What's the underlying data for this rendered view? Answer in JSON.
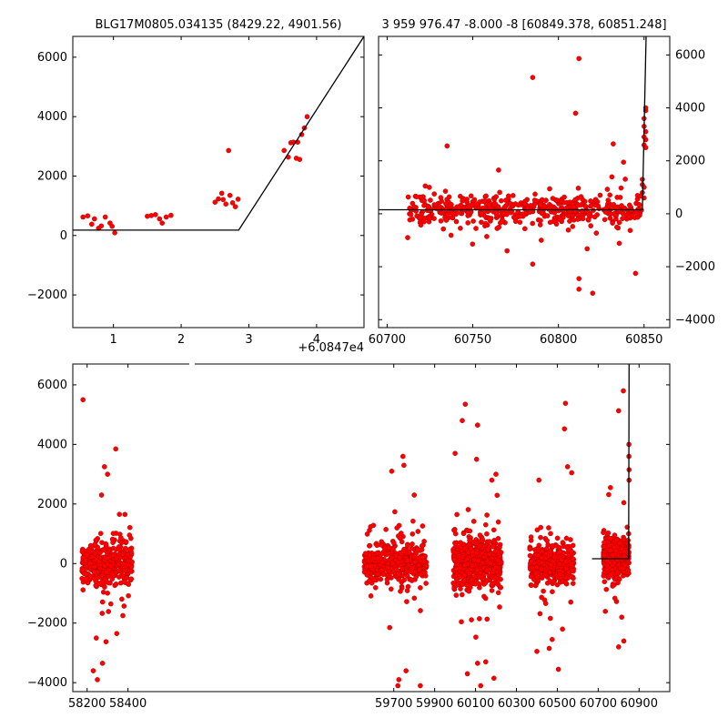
{
  "chart_data": [
    {
      "id": "panel-1",
      "type": "scatter",
      "title": "BLG17M0805.034135 (8429.22, 4901.56)",
      "xlim": [
        0.4,
        4.7
      ],
      "ylim": [
        -3100,
        6700
      ],
      "x_offset_label": "+6.0847e4",
      "xticks": [
        {
          "value": 1,
          "label": "1"
        },
        {
          "value": 2,
          "label": "2"
        },
        {
          "value": 3,
          "label": "3"
        },
        {
          "value": 4,
          "label": "4"
        }
      ],
      "yticks": [
        {
          "value": -2000,
          "label": "−2000"
        },
        {
          "value": 0,
          "label": "0"
        },
        {
          "value": 2000,
          "label": "2000"
        },
        {
          "value": 4000,
          "label": "4000"
        },
        {
          "value": 6000,
          "label": "6000"
        }
      ],
      "y_axis_side": "left",
      "points": [
        [
          0.55,
          620
        ],
        [
          0.62,
          660
        ],
        [
          0.68,
          380
        ],
        [
          0.72,
          560
        ],
        [
          0.78,
          240
        ],
        [
          0.82,
          320
        ],
        [
          0.88,
          620
        ],
        [
          0.95,
          420
        ],
        [
          0.98,
          310
        ],
        [
          1.02,
          90
        ],
        [
          1.5,
          650
        ],
        [
          1.56,
          670
        ],
        [
          1.62,
          700
        ],
        [
          1.68,
          560
        ],
        [
          1.72,
          420
        ],
        [
          1.78,
          620
        ],
        [
          1.85,
          680
        ],
        [
          2.5,
          1120
        ],
        [
          2.55,
          1230
        ],
        [
          2.6,
          1420
        ],
        [
          2.62,
          1210
        ],
        [
          2.66,
          1060
        ],
        [
          2.7,
          2860
        ],
        [
          2.72,
          1350
        ],
        [
          2.76,
          1100
        ],
        [
          2.8,
          970
        ],
        [
          2.84,
          1220
        ],
        [
          3.52,
          2860
        ],
        [
          3.58,
          2640
        ],
        [
          3.62,
          3120
        ],
        [
          3.66,
          3140
        ],
        [
          3.7,
          2600
        ],
        [
          3.72,
          3140
        ],
        [
          3.75,
          2560
        ],
        [
          3.78,
          3400
        ],
        [
          3.82,
          3620
        ],
        [
          3.86,
          4000
        ]
      ],
      "model": [
        [
          0.4,
          180
        ],
        [
          2.85,
          180
        ],
        [
          4.7,
          6700
        ]
      ]
    },
    {
      "id": "panel-2",
      "type": "scatter",
      "title": "3 959 976.47 -8.000 -8 [60849.378, 60851.248]",
      "xlim": [
        60695,
        60865
      ],
      "ylim": [
        -4300,
        6700
      ],
      "xticks": [
        {
          "value": 60700,
          "label": "60700"
        },
        {
          "value": 60750,
          "label": "60750"
        },
        {
          "value": 60800,
          "label": "60800"
        },
        {
          "value": 60850,
          "label": "60850"
        }
      ],
      "yticks": [
        {
          "value": -4000,
          "label": "−4000"
        },
        {
          "value": -2000,
          "label": "−2000"
        },
        {
          "value": 0,
          "label": "0"
        },
        {
          "value": 2000,
          "label": "2000"
        },
        {
          "value": 4000,
          "label": "4000"
        },
        {
          "value": 6000,
          "label": "6000"
        }
      ],
      "y_axis_side": "right",
      "points": [
        [
          60712,
          -900
        ],
        [
          60735,
          2560
        ],
        [
          60785,
          5150
        ],
        [
          60810,
          3800
        ],
        [
          60812,
          5860
        ],
        [
          60832,
          2640
        ],
        [
          60838,
          1950
        ],
        [
          60812,
          -2450
        ],
        [
          60812,
          -2850
        ],
        [
          60820,
          -3000
        ],
        [
          60845,
          -2250
        ],
        [
          60785,
          -1900
        ],
        [
          60770,
          -1400
        ],
        [
          60790,
          -1000
        ],
        [
          60850,
          3300
        ],
        [
          60850,
          3600
        ],
        [
          60851,
          3100
        ],
        [
          60851,
          2800
        ],
        [
          60850,
          2600
        ],
        [
          60851,
          2500
        ],
        [
          60850,
          2900
        ],
        [
          60851,
          3900
        ],
        [
          60851,
          4000
        ],
        [
          60849,
          1300
        ],
        [
          60849,
          1100
        ],
        [
          60850,
          1000
        ],
        [
          60849,
          800
        ],
        [
          60850,
          600
        ]
      ],
      "model": [
        [
          60695,
          150
        ],
        [
          60849,
          150
        ],
        [
          60851.2,
          6700
        ]
      ]
    },
    {
      "id": "panel-3",
      "type": "scatter",
      "title": "",
      "xlim": [
        58130,
        61050
      ],
      "ylim": [
        -4300,
        6700
      ],
      "xticks": [
        {
          "value": 58200,
          "label": "58200"
        },
        {
          "value": 58400,
          "label": "58400"
        },
        {
          "value": 59700,
          "label": "59700"
        },
        {
          "value": 59900,
          "label": "59900"
        },
        {
          "value": 60100,
          "label": "60100"
        },
        {
          "value": 60300,
          "label": "60300"
        },
        {
          "value": 60500,
          "label": "60500"
        },
        {
          "value": 60700,
          "label": "60700"
        },
        {
          "value": 60900,
          "label": "60900"
        }
      ],
      "yticks": [
        {
          "value": -4000,
          "label": "−4000"
        },
        {
          "value": -2000,
          "label": "−2000"
        },
        {
          "value": 0,
          "label": "0"
        },
        {
          "value": 2000,
          "label": "2000"
        },
        {
          "value": 4000,
          "label": "4000"
        },
        {
          "value": 6000,
          "label": "6000"
        }
      ],
      "y_axis_side": "left",
      "x_break": true,
      "seasons": [
        [
          58175,
          58420
        ],
        [
          59555,
          59860
        ],
        [
          59990,
          60225
        ],
        [
          60365,
          60580
        ],
        [
          60725,
          60850
        ]
      ],
      "outliers": [
        [
          58180,
          5500
        ],
        [
          58285,
          3250
        ],
        [
          58300,
          3000
        ],
        [
          58340,
          3850
        ],
        [
          58245,
          -2500
        ],
        [
          58250,
          -3900
        ],
        [
          58230,
          -3600
        ],
        [
          58275,
          -3350
        ],
        [
          58345,
          -2350
        ],
        [
          58385,
          1650
        ],
        [
          58375,
          -1750
        ],
        [
          59690,
          3100
        ],
        [
          59745,
          3600
        ],
        [
          59750,
          3300
        ],
        [
          59800,
          2300
        ],
        [
          59720,
          -4100
        ],
        [
          59725,
          -3900
        ],
        [
          59760,
          -3600
        ],
        [
          59830,
          -4100
        ],
        [
          59680,
          -2150
        ],
        [
          60050,
          5350
        ],
        [
          60035,
          4800
        ],
        [
          60000,
          3700
        ],
        [
          60110,
          4650
        ],
        [
          60105,
          3500
        ],
        [
          60180,
          2800
        ],
        [
          60200,
          3000
        ],
        [
          60125,
          -4100
        ],
        [
          60190,
          -3850
        ],
        [
          60060,
          -3700
        ],
        [
          60110,
          -3350
        ],
        [
          60150,
          -3300
        ],
        [
          60410,
          2800
        ],
        [
          60540,
          5380
        ],
        [
          60535,
          4520
        ],
        [
          60550,
          3250
        ],
        [
          60570,
          3050
        ],
        [
          60505,
          -3550
        ],
        [
          60400,
          -2950
        ],
        [
          60460,
          -2850
        ],
        [
          60475,
          -2550
        ],
        [
          60525,
          -2200
        ],
        [
          60800,
          5130
        ],
        [
          60823,
          5800
        ],
        [
          60760,
          2550
        ],
        [
          60800,
          -2800
        ],
        [
          60825,
          -2600
        ],
        [
          60815,
          -1800
        ],
        [
          60850,
          4000
        ],
        [
          60850,
          3600
        ],
        [
          60851,
          3150
        ],
        [
          60851,
          2800
        ]
      ],
      "model": [
        [
          60670,
          160
        ],
        [
          60849,
          160
        ],
        [
          60851.2,
          6700
        ]
      ]
    }
  ]
}
